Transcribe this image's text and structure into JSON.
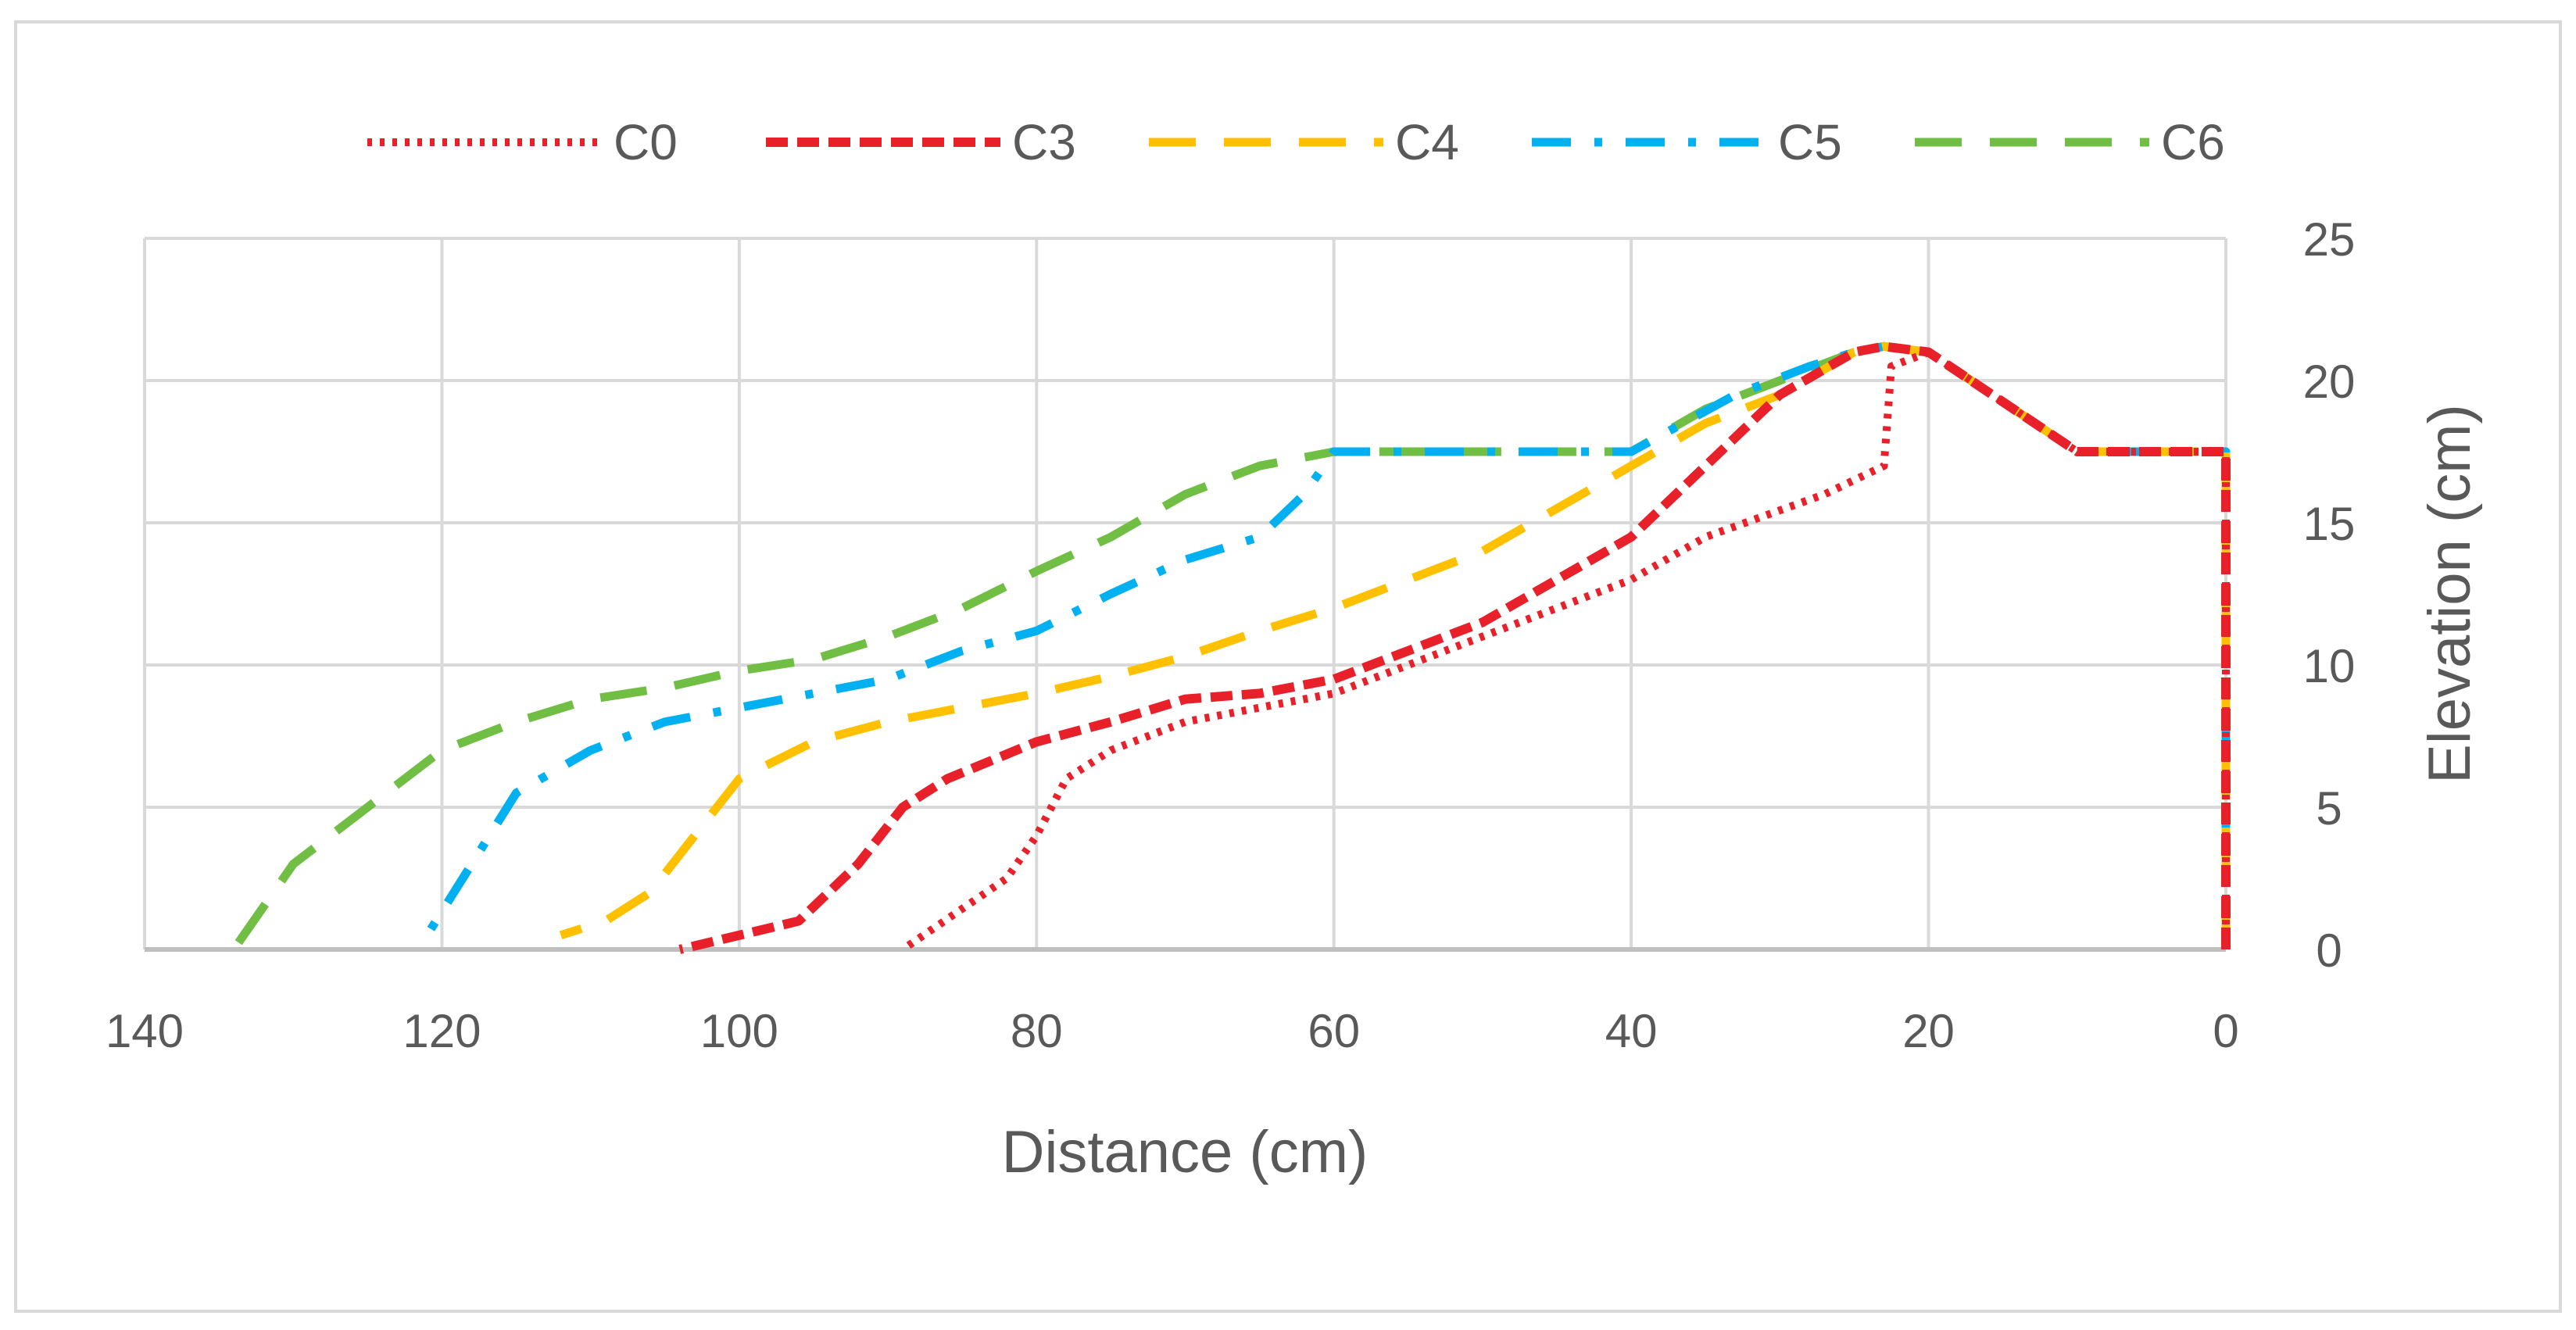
{
  "chart_data": {
    "type": "line",
    "title": "",
    "xlabel": "Distance  (cm)",
    "ylabel": "Elevation  (cm)",
    "xlim": [
      140,
      0
    ],
    "ylim": [
      0,
      25
    ],
    "x_reversed": true,
    "y_axis_side": "right",
    "grid": true,
    "legend_position": "top",
    "xticks": [
      "140",
      "120",
      "100",
      "80",
      "60",
      "40",
      "20",
      "0"
    ],
    "yticks": [
      "0",
      "5",
      "10",
      "15",
      "20",
      "25"
    ],
    "series": [
      {
        "name": "C0",
        "color": "#E8202A",
        "style": "dotted",
        "points": [
          [
            0,
            0
          ],
          [
            0,
            17.5
          ],
          [
            10,
            17.5
          ],
          [
            20,
            21
          ],
          [
            22.5,
            20.5
          ],
          [
            23,
            17
          ],
          [
            27,
            16
          ],
          [
            35,
            14.5
          ],
          [
            40,
            13
          ],
          [
            50,
            11
          ],
          [
            60,
            9
          ],
          [
            70,
            8
          ],
          [
            75,
            7
          ],
          [
            78,
            6
          ],
          [
            80,
            4
          ],
          [
            82,
            2.5
          ],
          [
            89,
            0
          ]
        ]
      },
      {
        "name": "C3",
        "color": "#E8202A",
        "style": "dashed",
        "points": [
          [
            0,
            0
          ],
          [
            0,
            17.5
          ],
          [
            10,
            17.5
          ],
          [
            20,
            21
          ],
          [
            23,
            21.2
          ],
          [
            25,
            21
          ],
          [
            30,
            19.5
          ],
          [
            35,
            17
          ],
          [
            40,
            14.5
          ],
          [
            45,
            13
          ],
          [
            50,
            11.5
          ],
          [
            55,
            10.5
          ],
          [
            60,
            9.5
          ],
          [
            65,
            9
          ],
          [
            70,
            8.8
          ],
          [
            75,
            8
          ],
          [
            80,
            7.3
          ],
          [
            86,
            6
          ],
          [
            89,
            5
          ],
          [
            92,
            3
          ],
          [
            96,
            1
          ],
          [
            100,
            0.5
          ],
          [
            104,
            0
          ]
        ]
      },
      {
        "name": "C4",
        "color": "#FFC000",
        "style": "long-dash",
        "points": [
          [
            0,
            0
          ],
          [
            0,
            17.5
          ],
          [
            10,
            17.5
          ],
          [
            20,
            21
          ],
          [
            23,
            21.2
          ],
          [
            25,
            21
          ],
          [
            30,
            19.5
          ],
          [
            35,
            18.5
          ],
          [
            40,
            17
          ],
          [
            45,
            15.5
          ],
          [
            50,
            14
          ],
          [
            55,
            13
          ],
          [
            60,
            12
          ],
          [
            65,
            11.2
          ],
          [
            70,
            10.3
          ],
          [
            75,
            9.6
          ],
          [
            80,
            9
          ],
          [
            85,
            8.5
          ],
          [
            90,
            8
          ],
          [
            95,
            7.3
          ],
          [
            100,
            6
          ],
          [
            103,
            4
          ],
          [
            106,
            2
          ],
          [
            109,
            1
          ],
          [
            112,
            0.5
          ]
        ]
      },
      {
        "name": "C5",
        "color": "#00B0F0",
        "style": "dash-dot",
        "points": [
          [
            0,
            0
          ],
          [
            0,
            17.5
          ],
          [
            10,
            17.5
          ],
          [
            20,
            21
          ],
          [
            23,
            21.2
          ],
          [
            25,
            21
          ],
          [
            28,
            20.5
          ],
          [
            33,
            19.5
          ],
          [
            40,
            17.5
          ],
          [
            60,
            17.5
          ],
          [
            62,
            16
          ],
          [
            65,
            14.5
          ],
          [
            70,
            13.7
          ],
          [
            75,
            12.5
          ],
          [
            80,
            11.2
          ],
          [
            85,
            10.5
          ],
          [
            90,
            9.5
          ],
          [
            95,
            9
          ],
          [
            100,
            8.5
          ],
          [
            105,
            8
          ],
          [
            110,
            7
          ],
          [
            115,
            5.5
          ],
          [
            118,
            3
          ],
          [
            121,
            0.5
          ],
          [
            121,
            0
          ]
        ]
      },
      {
        "name": "C6",
        "color": "#70BF44",
        "style": "long-dash",
        "points": [
          [
            0,
            0
          ],
          [
            0,
            17.5
          ],
          [
            10,
            17.5
          ],
          [
            20,
            21
          ],
          [
            23,
            21.2
          ],
          [
            25,
            21
          ],
          [
            30,
            20
          ],
          [
            35,
            19
          ],
          [
            40,
            17.5
          ],
          [
            60,
            17.5
          ],
          [
            65,
            17
          ],
          [
            70,
            16
          ],
          [
            75,
            14.5
          ],
          [
            80,
            13.3
          ],
          [
            85,
            12
          ],
          [
            90,
            11
          ],
          [
            95,
            10.2
          ],
          [
            100,
            9.8
          ],
          [
            105,
            9.2
          ],
          [
            110,
            8.8
          ],
          [
            115,
            8
          ],
          [
            120,
            7
          ],
          [
            125,
            5
          ],
          [
            130,
            3
          ],
          [
            134,
            0
          ]
        ]
      }
    ]
  }
}
